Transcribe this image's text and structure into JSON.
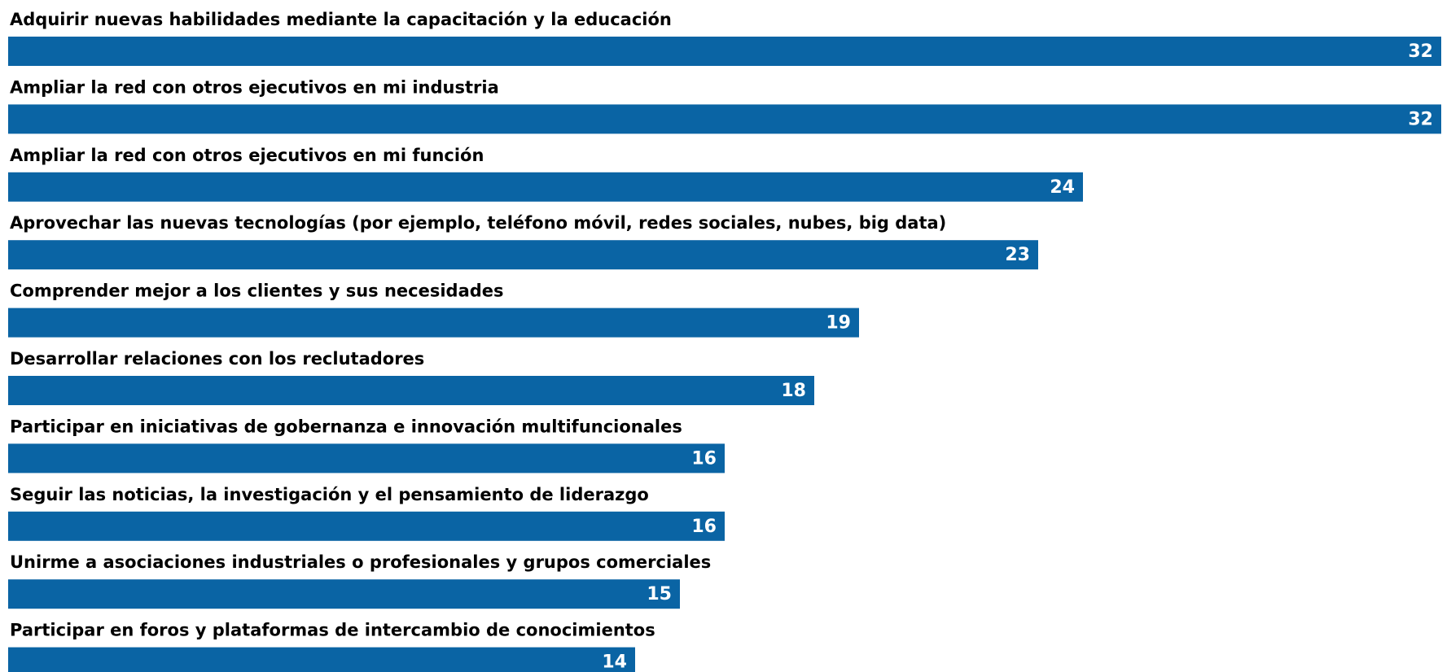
{
  "chart_data": {
    "type": "bar",
    "orientation": "horizontal",
    "categories": [
      "Adquirir nuevas habilidades mediante la capacitación y la educación",
      "Ampliar la red con otros ejecutivos en mi industria",
      "Ampliar la red con otros ejecutivos en mi función",
      "Aprovechar las nuevas tecnologías (por ejemplo, teléfono móvil, redes sociales, nubes, big data)",
      "Comprender mejor a los clientes y sus necesidades",
      "Desarrollar relaciones con los reclutadores",
      "Participar en iniciativas de gobernanza e innovación multifuncionales",
      "Seguir las noticias, la investigación y el pensamiento de liderazgo",
      "Unirme a asociaciones industriales o profesionales y grupos comerciales",
      "Participar en foros y plataformas de intercambio de conocimientos"
    ],
    "values": [
      32,
      32,
      24,
      23,
      19,
      18,
      16,
      16,
      15,
      14
    ],
    "color": "#0a64a4"
  }
}
